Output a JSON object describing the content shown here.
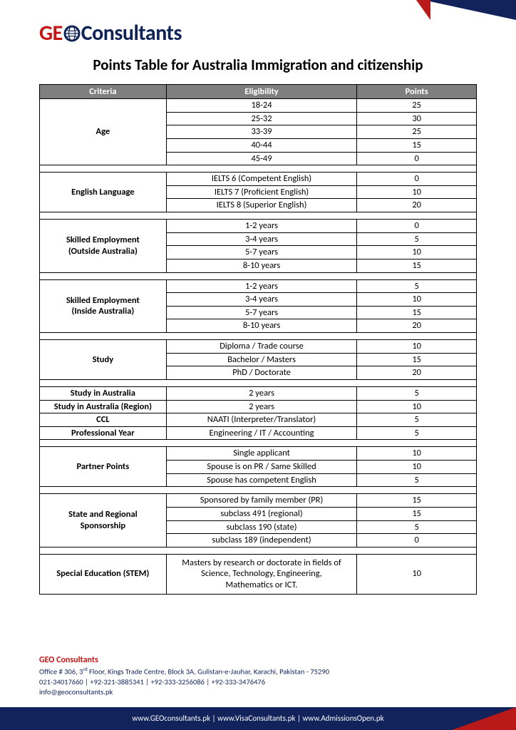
{
  "brand": {
    "geo": "GEO",
    "rest": "Consultants",
    "colors": {
      "red": "#c41414",
      "navy": "#12225b",
      "header_gray": "#7f7f7f"
    }
  },
  "title": "Points Table for Australia Immigration and citizenship",
  "table": {
    "headers": {
      "criteria": "Criteria",
      "eligibility": "Eligibility",
      "points": "Points"
    },
    "groups": [
      {
        "criteria": "Age",
        "rows": [
          {
            "e": "18-24",
            "p": "25"
          },
          {
            "e": "25-32",
            "p": "30"
          },
          {
            "e": "33-39",
            "p": "25"
          },
          {
            "e": "40-44",
            "p": "15"
          },
          {
            "e": "45-49",
            "p": "0"
          }
        ]
      },
      {
        "criteria": "English Language",
        "rows": [
          {
            "e": "IELTS 6 (Competent English)",
            "p": "0"
          },
          {
            "e": "IELTS 7 (Proficient English)",
            "p": "10"
          },
          {
            "e": "IELTS 8 (Superior English)",
            "p": "20"
          }
        ]
      },
      {
        "criteria": "Skilled Employment\n(Outside Australia)",
        "rows": [
          {
            "e": "1-2 years",
            "p": "0"
          },
          {
            "e": "3-4 years",
            "p": "5"
          },
          {
            "e": "5-7 years",
            "p": "10"
          },
          {
            "e": "8-10 years",
            "p": "15"
          }
        ]
      },
      {
        "criteria": "Skilled Employment\n(Inside Australia)",
        "rows": [
          {
            "e": "1-2 years",
            "p": "5"
          },
          {
            "e": "3-4 years",
            "p": "10"
          },
          {
            "e": "5-7 years",
            "p": "15"
          },
          {
            "e": "8-10 years",
            "p": "20"
          }
        ]
      },
      {
        "criteria": "Study",
        "rows": [
          {
            "e": "Diploma / Trade course",
            "p": "10"
          },
          {
            "e": "Bachelor / Masters",
            "p": "15"
          },
          {
            "e": "PhD / Doctorate",
            "p": "20"
          }
        ]
      },
      {
        "rows": [
          {
            "c": "Study in Australia",
            "e": "2 years",
            "p": "5"
          },
          {
            "c": "Study in Australia (Region)",
            "e": "2 years",
            "p": "10"
          },
          {
            "c": "CCL",
            "e": "NAATI (Interpreter/Translator)",
            "p": "5"
          },
          {
            "c": "Professional Year",
            "e": "Engineering / IT / Accounting",
            "p": "5"
          }
        ]
      },
      {
        "criteria": "Partner Points",
        "rows": [
          {
            "e": "Single applicant",
            "p": "10"
          },
          {
            "e": "Spouse is on PR / Same Skilled",
            "p": "10"
          },
          {
            "e": "Spouse has competent English",
            "p": "5"
          }
        ]
      },
      {
        "criteria": "State and Regional\nSponsorship",
        "rows": [
          {
            "e": "Sponsored by family member (PR)",
            "p": "15"
          },
          {
            "e": "subclass 491 (regional)",
            "p": "15"
          },
          {
            "e": "subclass 190 (state)",
            "p": "5"
          },
          {
            "e": "subclass 189 (independent)",
            "p": "0"
          }
        ]
      },
      {
        "criteria": "Special Education (STEM)",
        "rows": [
          {
            "e": "Masters by research or doctorate in fields of Science, Technology, Engineering, Mathematics or ICT.",
            "p": "10",
            "tall": true
          }
        ]
      }
    ]
  },
  "contact": {
    "name": "GEO Consultants",
    "address": "Office # 306, 3rd Floor, Kings Trade Centre, Block 3A, Gulistan-e-Jauhar, Karachi, Pakistan - 75290",
    "phones": "021-34017660 | +92-321-3885341 | +92-333-3256086 | +92-333-3476476",
    "email": "info@geoconsultants.pk"
  },
  "footer": "www.GEOconsultants.pk | www.VisaConsultants.pk | www.AdmissionsOpen.pk"
}
